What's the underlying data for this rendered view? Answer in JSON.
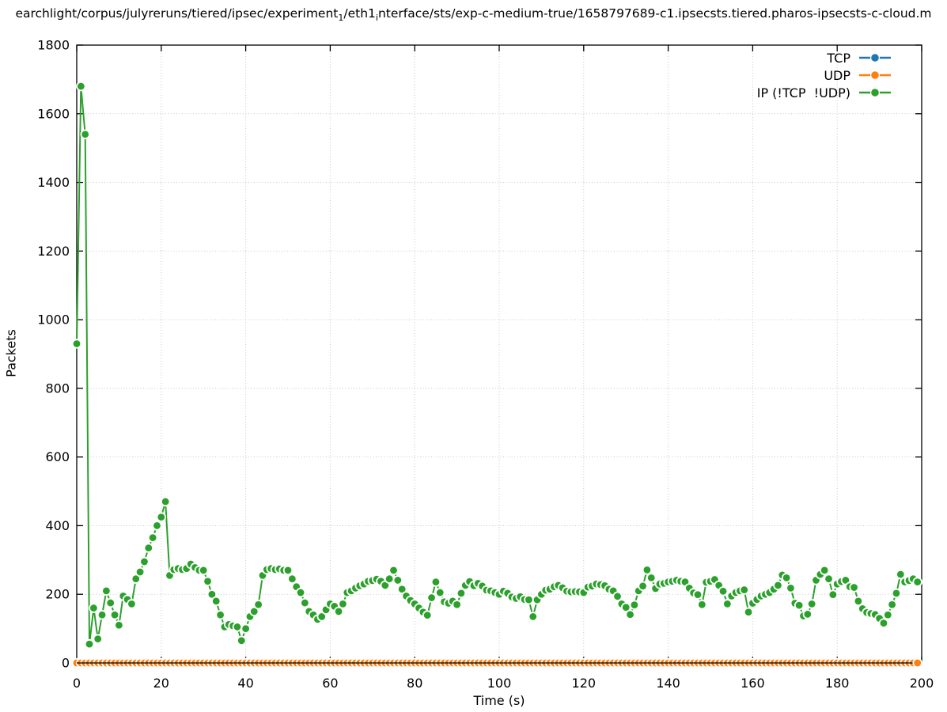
{
  "title": {
    "part1": "earchlight/corpus/julyreruns/tiered/ipsec/experiment",
    "sub1": "1",
    "part2": "/eth1",
    "sub2": "i",
    "part3": "nterface/sts/exp-c-medium-true/1658797689-c1.ipsecsts.tiered.pharos-ipsecsts-c-cloud.m"
  },
  "colors": {
    "tcp_blue": "#1f77b4",
    "udp_orange": "#ff7f0e",
    "ip_green": "#2ca02c",
    "grid_gray": "#c8c8c8",
    "axis_black": "#000000",
    "background": "#ffffff"
  },
  "chart_data": {
    "type": "line",
    "title": "earchlight/corpus/julyreruns/tiered/ipsec/experiment_1/eth1_interface/sts/exp-c-medium-true/1658797689-c1.ipsecsts.tiered.pharos-ipsecsts-c-cloud.m",
    "xlabel": "Time (s)",
    "ylabel": "Packets",
    "xlim": [
      0,
      200
    ],
    "ylim": [
      0,
      1800
    ],
    "xticks": [
      0,
      20,
      40,
      60,
      80,
      100,
      120,
      140,
      160,
      180,
      200
    ],
    "yticks": [
      0,
      200,
      400,
      600,
      800,
      1000,
      1200,
      1400,
      1600,
      1800
    ],
    "grid": true,
    "legend_position": "top-right-inside",
    "marker": "filled-circle-with-white-halo",
    "n_points": 200,
    "x_start": 0,
    "x_step": 1,
    "series": [
      {
        "name": "TCP",
        "color": "#1f77b4",
        "constant": 0,
        "values": []
      },
      {
        "name": "UDP",
        "color": "#ff7f0e",
        "constant": 0,
        "values": []
      },
      {
        "name": "IP (!TCP  !UDP)",
        "color": "#2ca02c",
        "values": [
          930,
          1680,
          1540,
          55,
          160,
          70,
          140,
          210,
          175,
          140,
          110,
          195,
          185,
          172,
          245,
          265,
          295,
          335,
          365,
          400,
          425,
          470,
          255,
          272,
          275,
          272,
          275,
          288,
          278,
          270,
          270,
          238,
          200,
          180,
          140,
          105,
          112,
          108,
          105,
          65,
          100,
          135,
          150,
          170,
          255,
          272,
          275,
          272,
          274,
          270,
          270,
          245,
          222,
          205,
          175,
          150,
          140,
          127,
          135,
          155,
          172,
          165,
          150,
          172,
          205,
          210,
          218,
          225,
          230,
          238,
          240,
          244,
          238,
          226,
          245,
          270,
          241,
          215,
          195,
          182,
          172,
          160,
          148,
          139,
          190,
          236,
          205,
          178,
          174,
          180,
          170,
          203,
          226,
          237,
          225,
          232,
          224,
          212,
          210,
          205,
          200,
          209,
          203,
          192,
          188,
          193,
          185,
          184,
          135,
          184,
          200,
          212,
          215,
          222,
          226,
          219,
          209,
          207,
          208,
          207,
          205,
          221,
          224,
          230,
          228,
          225,
          215,
          210,
          194,
          172,
          162,
          141,
          169,
          210,
          224,
          271,
          248,
          217,
          230,
          232,
          236,
          238,
          241,
          238,
          236,
          218,
          204,
          199,
          170,
          235,
          238,
          243,
          226,
          209,
          172,
          195,
          205,
          210,
          213,
          148,
          174,
          185,
          195,
          200,
          205,
          215,
          226,
          256,
          248,
          218,
          174,
          168,
          137,
          142,
          172,
          241,
          258,
          270,
          245,
          199,
          230,
          237,
          241,
          222,
          220,
          180,
          158,
          147,
          144,
          141,
          130,
          116,
          140,
          170,
          203,
          258,
          236,
          240,
          245,
          236
        ]
      }
    ]
  }
}
